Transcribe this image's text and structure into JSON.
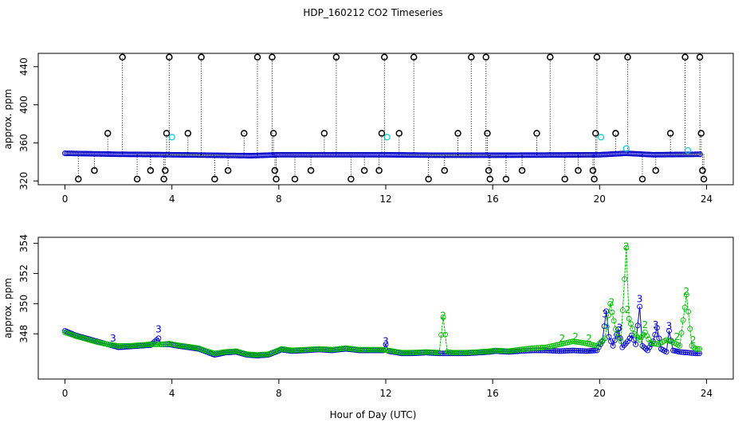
{
  "title": "HDP_160212  CO2 Timeseries",
  "xlabel": "Hour of Day (UTC)",
  "colors": {
    "black": "#000000",
    "cyan": "#00c8d2",
    "blue": "#0000cc",
    "green": "#00bb00"
  },
  "chart_data": [
    {
      "type": "scatter",
      "ylabel": "approx. ppm",
      "xlim": [
        -1,
        25
      ],
      "ylim": [
        316,
        454
      ],
      "x_ticks": [
        "0",
        "4",
        "8",
        "12",
        "16",
        "20",
        "24"
      ],
      "y_ticks": [
        "320",
        "360",
        "400",
        "440"
      ],
      "baseline": [
        [
          0,
          349
        ],
        [
          1,
          348.5
        ],
        [
          2,
          348
        ],
        [
          3,
          347.8
        ],
        [
          4,
          347.5
        ],
        [
          5,
          347.2
        ],
        [
          6,
          346.8
        ],
        [
          7,
          346.5
        ],
        [
          8,
          347.5
        ],
        [
          10,
          347.5
        ],
        [
          12,
          347.5
        ],
        [
          14,
          347
        ],
        [
          16,
          347
        ],
        [
          18,
          347.2
        ],
        [
          20,
          347.5
        ],
        [
          21,
          349
        ],
        [
          22,
          347.5
        ],
        [
          23.8,
          348
        ]
      ],
      "black_markers": [
        [
          0.5,
          322
        ],
        [
          1.1,
          331
        ],
        [
          1.6,
          370
        ],
        [
          2.15,
          450
        ],
        [
          2.7,
          322
        ],
        [
          3.2,
          331
        ],
        [
          3.7,
          322
        ],
        [
          3.75,
          331
        ],
        [
          3.8,
          370
        ],
        [
          3.9,
          450
        ],
        [
          4.6,
          370
        ],
        [
          5.1,
          450
        ],
        [
          5.6,
          322
        ],
        [
          6.1,
          331
        ],
        [
          6.7,
          370
        ],
        [
          7.2,
          450
        ],
        [
          7.75,
          450
        ],
        [
          7.8,
          370
        ],
        [
          7.85,
          331
        ],
        [
          7.9,
          322
        ],
        [
          8.6,
          322
        ],
        [
          9.2,
          331
        ],
        [
          9.7,
          370
        ],
        [
          10.15,
          450
        ],
        [
          10.7,
          322
        ],
        [
          11.2,
          331
        ],
        [
          11.75,
          331
        ],
        [
          11.85,
          370
        ],
        [
          11.95,
          450
        ],
        [
          12.5,
          370
        ],
        [
          13.05,
          450
        ],
        [
          13.6,
          322
        ],
        [
          14.2,
          331
        ],
        [
          14.7,
          370
        ],
        [
          15.2,
          450
        ],
        [
          15.75,
          450
        ],
        [
          15.8,
          370
        ],
        [
          15.85,
          331
        ],
        [
          15.9,
          322
        ],
        [
          16.5,
          322
        ],
        [
          17.1,
          331
        ],
        [
          17.65,
          370
        ],
        [
          18.15,
          450
        ],
        [
          18.7,
          322
        ],
        [
          19.2,
          331
        ],
        [
          19.75,
          331
        ],
        [
          19.8,
          322
        ],
        [
          19.85,
          370
        ],
        [
          19.9,
          450
        ],
        [
          20.6,
          370
        ],
        [
          21.05,
          450
        ],
        [
          21.6,
          322
        ],
        [
          22.1,
          331
        ],
        [
          22.65,
          370
        ],
        [
          23.2,
          450
        ],
        [
          23.75,
          450
        ],
        [
          23.8,
          370
        ],
        [
          23.85,
          331
        ],
        [
          23.9,
          322
        ]
      ],
      "cyan_markers": [
        [
          4.0,
          366
        ],
        [
          12.05,
          366
        ],
        [
          20.05,
          366
        ],
        [
          21.0,
          354
        ],
        [
          23.3,
          352
        ]
      ]
    },
    {
      "type": "line",
      "ylabel": "approx. ppm",
      "xlim": [
        -1,
        25
      ],
      "ylim": [
        345.0,
        354.4
      ],
      "x_ticks": [
        "0",
        "4",
        "8",
        "12",
        "16",
        "20",
        "24"
      ],
      "y_ticks": [
        "348",
        "350",
        "352",
        "354"
      ],
      "series": [
        {
          "color": "#0000cc",
          "points": [
            [
              0,
              348.2
            ],
            [
              0.4,
              347.9
            ],
            [
              0.8,
              347.7
            ],
            [
              1.2,
              347.5
            ],
            [
              1.6,
              347.3
            ],
            [
              2.0,
              347.1
            ],
            [
              2.4,
              347.15
            ],
            [
              2.8,
              347.2
            ],
            [
              3.2,
              347.25
            ],
            [
              3.5,
              347.7
            ],
            [
              3.6,
              347.3
            ],
            [
              3.9,
              347.3
            ],
            [
              4.2,
              347.2
            ],
            [
              4.6,
              347.1
            ],
            [
              5.0,
              347.0
            ],
            [
              5.3,
              346.8
            ],
            [
              5.6,
              346.6
            ],
            [
              6.0,
              346.75
            ],
            [
              6.4,
              346.8
            ],
            [
              6.8,
              346.6
            ],
            [
              7.2,
              346.55
            ],
            [
              7.6,
              346.6
            ],
            [
              7.9,
              346.8
            ],
            [
              8.1,
              346.95
            ],
            [
              8.5,
              346.85
            ],
            [
              9.0,
              346.9
            ],
            [
              9.5,
              346.95
            ],
            [
              10.0,
              346.9
            ],
            [
              10.5,
              347.0
            ],
            [
              11.0,
              346.9
            ],
            [
              11.5,
              346.9
            ],
            [
              11.9,
              346.9
            ],
            [
              12.0,
              347.3
            ],
            [
              12.1,
              346.85
            ],
            [
              12.6,
              346.7
            ],
            [
              13.0,
              346.7
            ],
            [
              13.5,
              346.75
            ],
            [
              14.0,
              346.7
            ],
            [
              14.5,
              346.7
            ],
            [
              15.0,
              346.7
            ],
            [
              15.5,
              346.75
            ],
            [
              15.9,
              346.8
            ],
            [
              16.1,
              346.85
            ],
            [
              16.6,
              346.8
            ],
            [
              17.0,
              346.85
            ],
            [
              17.5,
              346.9
            ],
            [
              18.0,
              346.9
            ],
            [
              18.5,
              346.85
            ],
            [
              19.0,
              346.9
            ],
            [
              19.5,
              346.85
            ],
            [
              19.9,
              346.9
            ],
            [
              20.1,
              347.5
            ],
            [
              20.25,
              349.5
            ],
            [
              20.35,
              347.8
            ],
            [
              20.5,
              347.2
            ],
            [
              20.7,
              348.3
            ],
            [
              20.85,
              347.1
            ],
            [
              21.05,
              347.5
            ],
            [
              21.2,
              347.9
            ],
            [
              21.35,
              347.3
            ],
            [
              21.5,
              349.8
            ],
            [
              21.6,
              347.2
            ],
            [
              21.8,
              346.9
            ],
            [
              22.0,
              347.5
            ],
            [
              22.15,
              348.4
            ],
            [
              22.3,
              347.0
            ],
            [
              22.5,
              346.8
            ],
            [
              22.6,
              348.2
            ],
            [
              22.75,
              346.9
            ],
            [
              23.0,
              346.8
            ],
            [
              23.3,
              346.75
            ],
            [
              23.6,
              346.7
            ],
            [
              23.8,
              346.7
            ]
          ]
        },
        {
          "color": "#00bb00",
          "points": [
            [
              0,
              348.1
            ],
            [
              0.4,
              347.85
            ],
            [
              0.8,
              347.65
            ],
            [
              1.2,
              347.45
            ],
            [
              1.6,
              347.3
            ],
            [
              2.0,
              347.2
            ],
            [
              2.4,
              347.2
            ],
            [
              2.8,
              347.25
            ],
            [
              3.2,
              347.3
            ],
            [
              3.6,
              347.3
            ],
            [
              3.9,
              347.35
            ],
            [
              4.2,
              347.25
            ],
            [
              4.6,
              347.15
            ],
            [
              5.0,
              347.05
            ],
            [
              5.3,
              346.85
            ],
            [
              5.6,
              346.7
            ],
            [
              6.0,
              346.8
            ],
            [
              6.4,
              346.85
            ],
            [
              6.8,
              346.65
            ],
            [
              7.2,
              346.6
            ],
            [
              7.6,
              346.65
            ],
            [
              7.9,
              346.85
            ],
            [
              8.1,
              347.0
            ],
            [
              8.5,
              346.9
            ],
            [
              9.0,
              346.95
            ],
            [
              9.5,
              347.0
            ],
            [
              10.0,
              346.95
            ],
            [
              10.5,
              347.05
            ],
            [
              11.0,
              346.95
            ],
            [
              11.5,
              346.95
            ],
            [
              11.9,
              346.95
            ],
            [
              12.1,
              346.9
            ],
            [
              12.6,
              346.75
            ],
            [
              13.0,
              346.75
            ],
            [
              13.5,
              346.8
            ],
            [
              14.0,
              346.75
            ],
            [
              14.15,
              349.1
            ],
            [
              14.3,
              346.8
            ],
            [
              14.5,
              346.75
            ],
            [
              15.0,
              346.75
            ],
            [
              15.5,
              346.8
            ],
            [
              15.9,
              346.85
            ],
            [
              16.1,
              346.9
            ],
            [
              16.6,
              346.85
            ],
            [
              17.0,
              346.95
            ],
            [
              17.5,
              347.05
            ],
            [
              18.0,
              347.1
            ],
            [
              18.5,
              347.3
            ],
            [
              19.0,
              347.5
            ],
            [
              19.4,
              347.4
            ],
            [
              19.9,
              347.2
            ],
            [
              20.2,
              347.7
            ],
            [
              20.4,
              350.0
            ],
            [
              20.6,
              348.3
            ],
            [
              20.8,
              347.5
            ],
            [
              21.0,
              353.7
            ],
            [
              21.1,
              349.0
            ],
            [
              21.3,
              348.0
            ],
            [
              21.5,
              347.6
            ],
            [
              21.7,
              348.1
            ],
            [
              21.9,
              347.4
            ],
            [
              22.2,
              347.3
            ],
            [
              22.5,
              347.6
            ],
            [
              22.8,
              347.4
            ],
            [
              23.0,
              347.2
            ],
            [
              23.25,
              350.6
            ],
            [
              23.45,
              347.2
            ],
            [
              23.6,
              347.0
            ],
            [
              23.8,
              347.0
            ]
          ]
        }
      ],
      "labels": [
        {
          "x": 1.8,
          "y": 347.7,
          "text": "3",
          "color": "#0000cc"
        },
        {
          "x": 3.5,
          "y": 348.3,
          "text": "3",
          "color": "#0000cc"
        },
        {
          "x": 12.0,
          "y": 347.5,
          "text": "3",
          "color": "#0000cc"
        },
        {
          "x": 14.15,
          "y": 349.2,
          "text": "2",
          "color": "#00bb00"
        },
        {
          "x": 18.6,
          "y": 347.7,
          "text": "2",
          "color": "#00bb00"
        },
        {
          "x": 19.1,
          "y": 347.8,
          "text": "2",
          "color": "#00bb00"
        },
        {
          "x": 19.6,
          "y": 347.7,
          "text": "2",
          "color": "#00bb00"
        },
        {
          "x": 20.2,
          "y": 349.3,
          "text": "3",
          "color": "#0000cc"
        },
        {
          "x": 20.45,
          "y": 350.1,
          "text": "2",
          "color": "#00bb00"
        },
        {
          "x": 20.75,
          "y": 348.4,
          "text": "3",
          "color": "#0000cc"
        },
        {
          "x": 21.0,
          "y": 353.8,
          "text": "2",
          "color": "#00bb00"
        },
        {
          "x": 21.05,
          "y": 349.6,
          "text": "2",
          "color": "#00bb00"
        },
        {
          "x": 21.5,
          "y": 350.3,
          "text": "3",
          "color": "#0000cc"
        },
        {
          "x": 21.7,
          "y": 348.6,
          "text": "2",
          "color": "#00bb00"
        },
        {
          "x": 22.1,
          "y": 348.6,
          "text": "3",
          "color": "#0000cc"
        },
        {
          "x": 22.6,
          "y": 348.5,
          "text": "3",
          "color": "#0000cc"
        },
        {
          "x": 22.9,
          "y": 347.8,
          "text": "2",
          "color": "#00bb00"
        },
        {
          "x": 23.25,
          "y": 350.8,
          "text": "2",
          "color": "#00bb00"
        },
        {
          "x": 23.5,
          "y": 347.6,
          "text": "2",
          "color": "#00bb00"
        }
      ]
    }
  ]
}
